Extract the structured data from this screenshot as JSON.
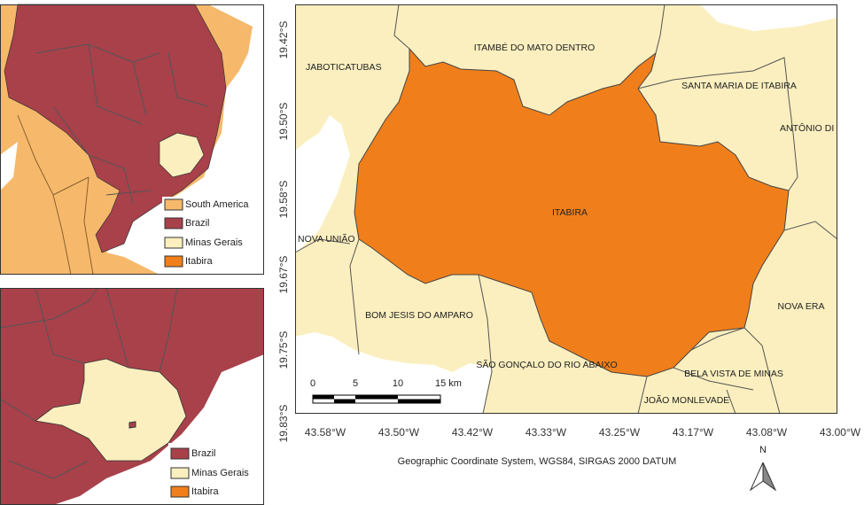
{
  "inset_top": {
    "legend": [
      "South America",
      "Brazil",
      "Minas Gerais",
      "Itabira"
    ]
  },
  "inset_bottom": {
    "legend": [
      "Brazil",
      "Minas Gerais",
      "Itabira"
    ]
  },
  "main_map": {
    "municipalities": [
      "JABOTICATUBAS",
      "ITAMBÉ DO MATO DENTRO",
      "SANTA MARIA DE ITABIRA",
      "ANTÔNIO DI",
      "ITABIRA",
      "NOVA UNIÃO",
      "BOM JESIS DO AMPARO",
      "NOVA ERA",
      "SÃO GONÇALO DO RIO ABAIXO",
      "BELA VISTA DE MINAS",
      "JOÃO MONLEVADE"
    ],
    "latitude_labels": [
      "19.42°S",
      "19.50°S",
      "19.58°S",
      "19.67°S",
      "19.75°S",
      "19.83°S"
    ],
    "longitude_labels": [
      "43.58°W",
      "43.50°W",
      "43.42°W",
      "43.33°W",
      "43.25°W",
      "43.17°W",
      "43.08°W",
      "43.00°W"
    ],
    "scale_labels": [
      "0",
      "5",
      "10",
      "15 km"
    ],
    "caption": "Geographic Coordinate System, WGS84, SIRGAS 2000 DATUM",
    "north": "N"
  }
}
